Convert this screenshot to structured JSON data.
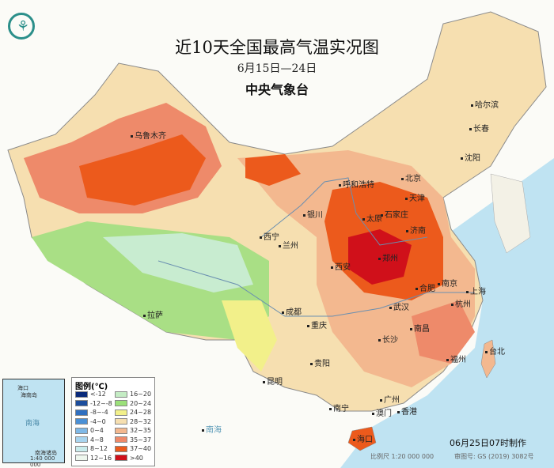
{
  "header": {
    "title": "近10天全国最高气温实况图",
    "date_range": "6月15日—24日",
    "organization": "中央气象台",
    "logo": "cma-logo-icon"
  },
  "cities": [
    "乌鲁木齐",
    "呼和浩特",
    "北京",
    "天津",
    "哈尔滨",
    "长春",
    "沈阳",
    "银川",
    "太原",
    "石家庄",
    "济南",
    "西宁",
    "兰州",
    "郑州",
    "西安",
    "合肥",
    "南京",
    "上海",
    "武汉",
    "杭州",
    "成都",
    "拉萨",
    "重庆",
    "南昌",
    "长沙",
    "台北",
    "福州",
    "贵阳",
    "昆明",
    "广州",
    "南宁",
    "澳门",
    "香港",
    "海口"
  ],
  "inset": {
    "sea_label": "南海",
    "island_label": "南海诸岛",
    "scale": "1:40 000 000",
    "city": "海口",
    "island": "海南岛"
  },
  "legend": {
    "title": "图例(℃)",
    "items": [
      {
        "label": "<-12",
        "color": "#0a2a7a"
      },
      {
        "label": "-12~-8",
        "color": "#1c4d9c"
      },
      {
        "label": "-8~-4",
        "color": "#2f6fc0"
      },
      {
        "label": "-4~0",
        "color": "#4a90d6"
      },
      {
        "label": "0~4",
        "color": "#7fb8e6"
      },
      {
        "label": "4~8",
        "color": "#a8d4ee"
      },
      {
        "label": "8~12",
        "color": "#c9ecec"
      },
      {
        "label": "12~16",
        "color": "#eef7ee"
      },
      {
        "label": "16~20",
        "color": "#c4ecc4"
      },
      {
        "label": "20~24",
        "color": "#9be07a"
      },
      {
        "label": "24~28",
        "color": "#f2f08a"
      },
      {
        "label": "28~32",
        "color": "#f6dfb0"
      },
      {
        "label": "32~35",
        "color": "#f3b88f"
      },
      {
        "label": "35~37",
        "color": "#ee8a6a"
      },
      {
        "label": "37~40",
        "color": "#ec5a1c"
      },
      {
        "label": ">40",
        "color": "#d0101a"
      }
    ]
  },
  "sea_labels": [
    "南海",
    "海",
    "海"
  ],
  "footer": {
    "made": "06月25日07时制作",
    "scale": "比例尺 1:20 000 000",
    "review": "审图号: GS (2019) 3082号"
  }
}
